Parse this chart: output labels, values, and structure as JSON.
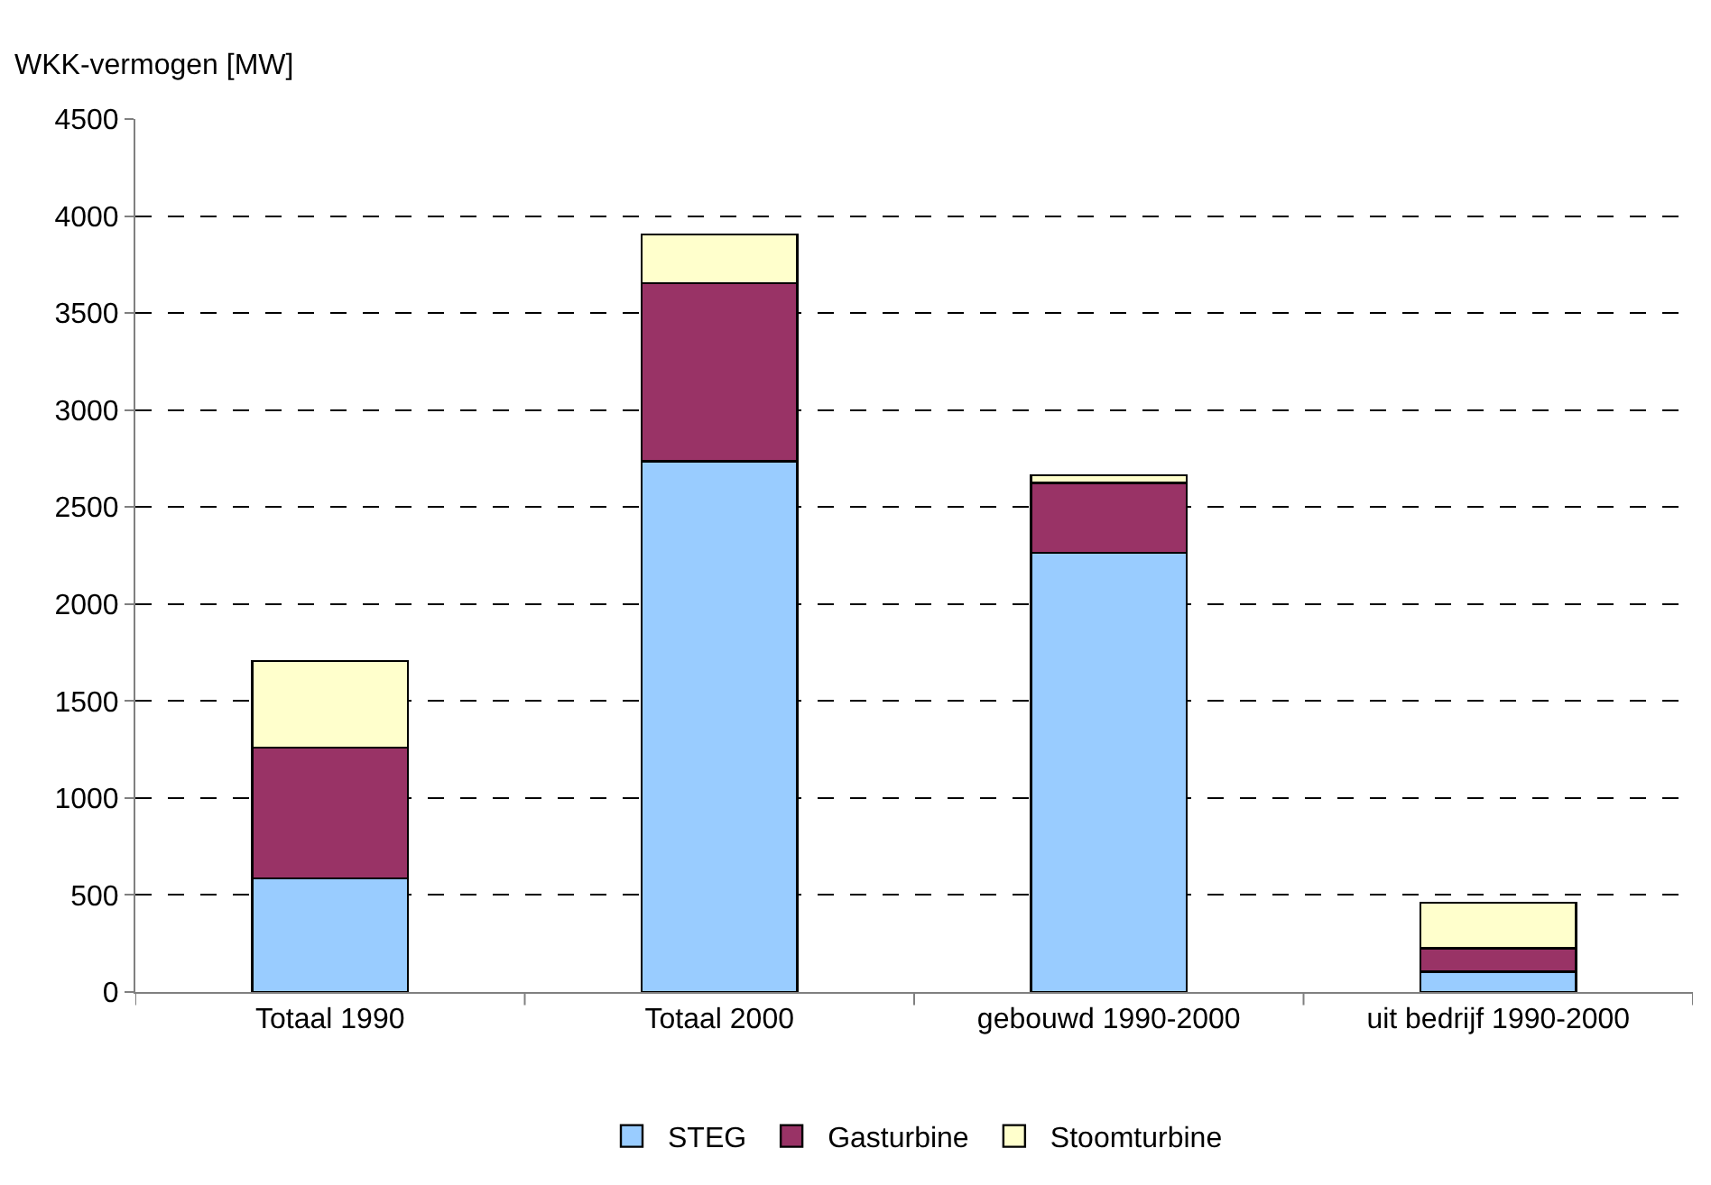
{
  "chart_data": {
    "type": "bar",
    "stacked": true,
    "ylabel": "WKK-vermogen [MW]",
    "categories": [
      "Totaal 1990",
      "Totaal 2000",
      "gebouwd 1990-2000",
      "uit bedrijf 1990-2000"
    ],
    "series": [
      {
        "name": "STEG",
        "color": "#99ccff",
        "values": [
          585,
          2735,
          2265,
          105
        ]
      },
      {
        "name": "Gasturbine",
        "color": "#993366",
        "values": [
          675,
          920,
          360,
          120
        ]
      },
      {
        "name": "Stoomturbine",
        "color": "#ffffcc",
        "values": [
          445,
          250,
          40,
          235
        ]
      }
    ],
    "ylim": [
      0,
      4500
    ],
    "yticks": [
      0,
      500,
      1000,
      1500,
      2000,
      2500,
      3000,
      3500,
      4000,
      4500
    ],
    "grid": "y",
    "legend": "bottom"
  }
}
